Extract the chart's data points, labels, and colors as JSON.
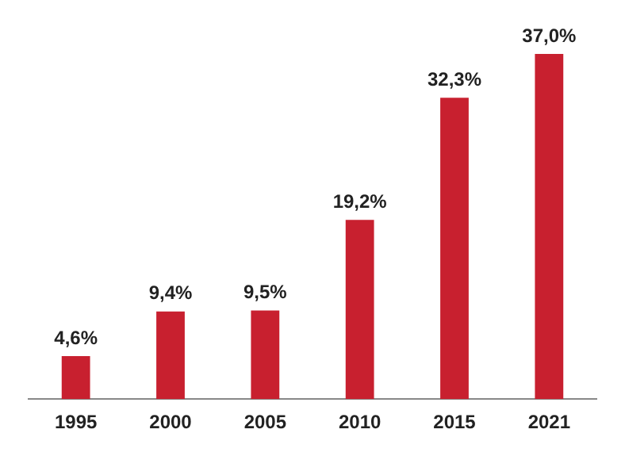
{
  "chart_data": {
    "type": "bar",
    "categories": [
      "1995",
      "2000",
      "2005",
      "2010",
      "2015",
      "2021"
    ],
    "values": [
      4.6,
      9.4,
      9.5,
      19.2,
      32.3,
      37.0
    ],
    "value_labels": [
      "4,6%",
      "9,4%",
      "9,5%",
      "19,2%",
      "32,3%",
      "37,0%"
    ],
    "color": "#c8202f",
    "ylim": [
      0,
      37
    ],
    "tick_labels": "x",
    "grid": false,
    "legend": false
  }
}
